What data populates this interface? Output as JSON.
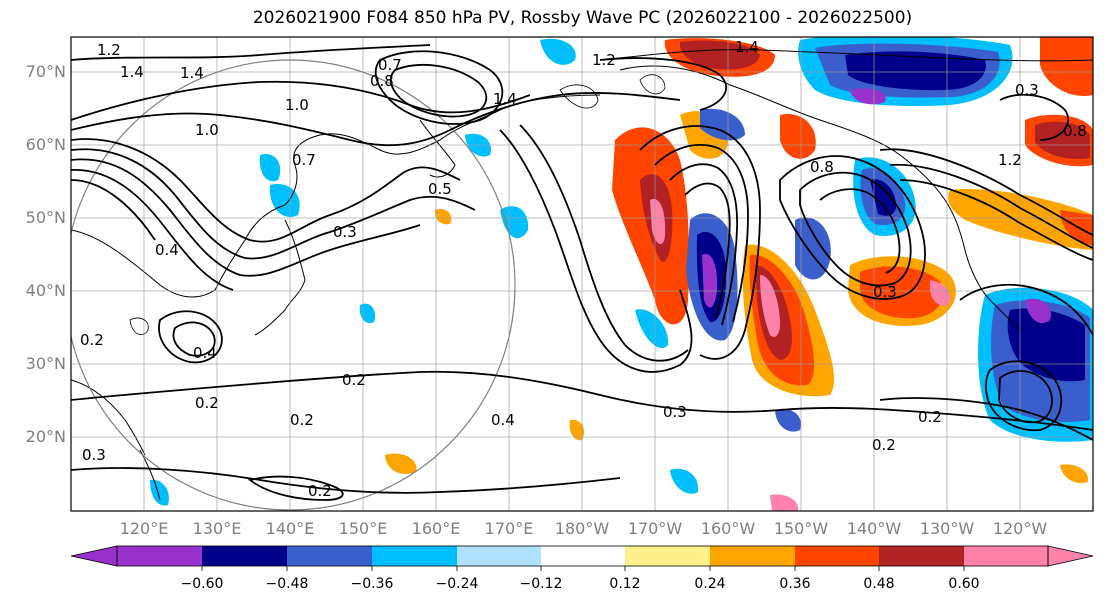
{
  "title": "2026021900 F084 850 hPa PV, Rossby Wave PC (2026022100 - 2026022500)",
  "map": {
    "projection": "Plate Carree, 110°E–110°W, 10°N–75°N",
    "lat_labels": [
      "70°N",
      "60°N",
      "50°N",
      "40°N",
      "30°N",
      "20°N"
    ],
    "lon_labels": [
      "120°E",
      "130°E",
      "140°E",
      "150°E",
      "160°E",
      "170°E",
      "180°W",
      "170°W",
      "160°W",
      "150°W",
      "140°W",
      "130°W",
      "120°W"
    ],
    "contour_labels": [
      "1.2",
      "1.4",
      "1.4",
      "1.0",
      "1.0",
      "0.7",
      "0.7",
      "0.8",
      "1.2",
      "1.4",
      "1.4",
      "0.5",
      "0.3",
      "0.4",
      "0.4",
      "0.2",
      "0.2",
      "0.3",
      "0.2",
      "0.2",
      "0.2",
      "0.4",
      "0.3",
      "0.3",
      "0.2",
      "0.2",
      "0.8",
      "0.3",
      "0.8",
      "1.2"
    ],
    "filled_field": "Rossby wave PC anomaly (shaded)",
    "contour_field": "850 hPa PV (black contours)"
  },
  "colorbar": {
    "ticks": [
      "−0.60",
      "−0.48",
      "−0.36",
      "−0.24",
      "−0.12",
      "0.12",
      "0.24",
      "0.36",
      "0.48",
      "0.60"
    ],
    "colors": [
      "#9932cc",
      "#00008b",
      "#3a5fcd",
      "#00bfff",
      "#b0e2ff",
      "#ffffff",
      "#fff08c",
      "#ffa500",
      "#ff4500",
      "#b22222",
      "#ff82ab"
    ]
  }
}
